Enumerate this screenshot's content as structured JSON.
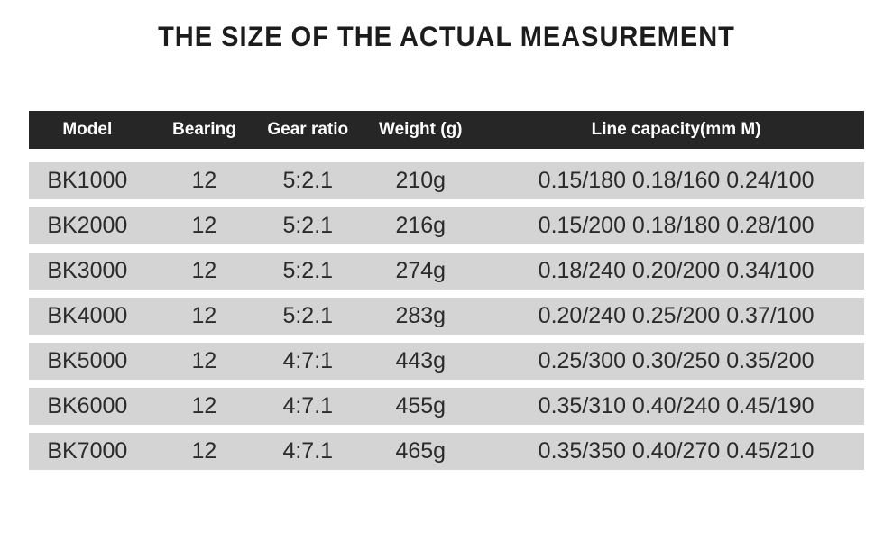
{
  "title": "THE SIZE OF THE ACTUAL MEASUREMENT",
  "table": {
    "headers": [
      "Model",
      "Bearing",
      "Gear ratio",
      "Weight (g)",
      "Line capacity(mm M)"
    ],
    "rows": [
      [
        "BK1000",
        "12",
        "5:2.1",
        "210g",
        "0.15/180 0.18/160 0.24/100"
      ],
      [
        "BK2000",
        "12",
        "5:2.1",
        "216g",
        "0.15/200 0.18/180 0.28/100"
      ],
      [
        "BK3000",
        "12",
        "5:2.1",
        "274g",
        "0.18/240 0.20/200 0.34/100"
      ],
      [
        "BK4000",
        "12",
        "5:2.1",
        "283g",
        "0.20/240 0.25/200 0.37/100"
      ],
      [
        "BK5000",
        "12",
        "4:7:1",
        "443g",
        "0.25/300 0.30/250 0.35/200"
      ],
      [
        "BK6000",
        "12",
        "4:7.1",
        "455g",
        "0.35/310 0.40/240 0.45/190"
      ],
      [
        "BK7000",
        "12",
        "4:7.1",
        "465g",
        "0.35/350 0.40/270 0.45/210"
      ]
    ]
  },
  "colors": {
    "header_bg": "#262626",
    "header_text": "#ffffff",
    "row_bg": "#d4d4d4",
    "row_text": "#2b2b2b",
    "page_bg": "#ffffff",
    "title_text": "#1c1c1c"
  }
}
